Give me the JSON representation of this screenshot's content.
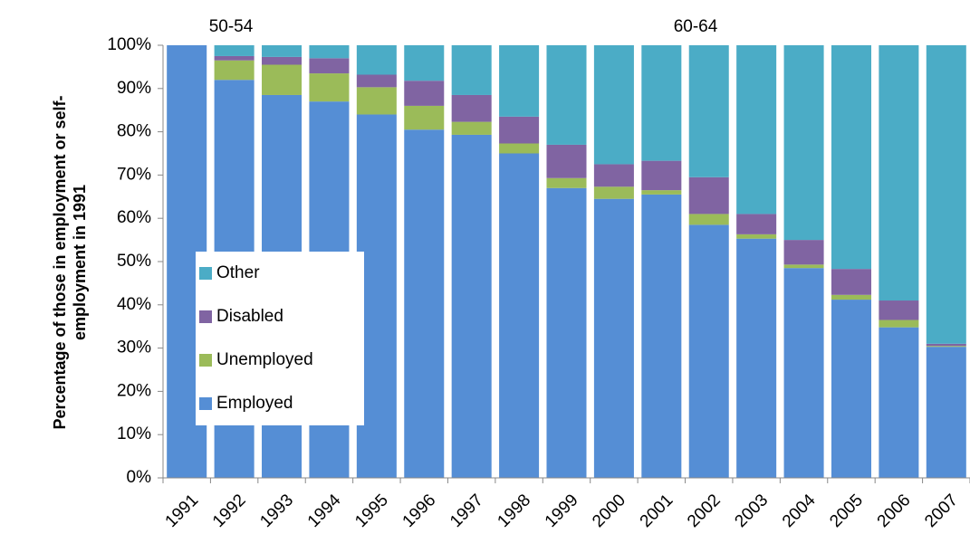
{
  "chart_data": {
    "type": "stacked_bar",
    "y_label": [
      "Percentage of those in employment or self-",
      "employment in 1991"
    ],
    "annotations": [
      "50-54",
      "60-64"
    ],
    "categories": [
      "1991",
      "1992",
      "1993",
      "1994",
      "1995",
      "1996",
      "1997",
      "1998",
      "1999",
      "2000",
      "2001",
      "2002",
      "2003",
      "2004",
      "2005",
      "2006",
      "2007"
    ],
    "series": [
      {
        "name": "Employed",
        "color": "#558ed5",
        "values": [
          100,
          92,
          88.5,
          87,
          84,
          80.5,
          79.3,
          75,
          67,
          64.5,
          65.5,
          58.5,
          55.3,
          48.5,
          41.2,
          34.8,
          30.3
        ]
      },
      {
        "name": "Unemployed",
        "color": "#9bbb59",
        "values": [
          0,
          4.5,
          7,
          6.5,
          6.3,
          5.5,
          3,
          2.3,
          2.3,
          2.8,
          1,
          2.5,
          1,
          0.8,
          1.1,
          1.7,
          0.2
        ]
      },
      {
        "name": "Disabled",
        "color": "#8064a2",
        "values": [
          0,
          1,
          1.8,
          3.5,
          2.9,
          5.8,
          6.2,
          6.2,
          7.7,
          5.2,
          6.8,
          8.5,
          4.7,
          5.7,
          6,
          4.5,
          0.5
        ]
      },
      {
        "name": "Other",
        "color": "#4bacc6",
        "values": [
          0,
          2.5,
          2.7,
          3,
          6.8,
          8.2,
          11.5,
          16.5,
          23,
          27.5,
          26.7,
          30.5,
          39,
          45,
          51.7,
          59,
          69
        ]
      }
    ],
    "ylim": [
      0,
      100
    ],
    "yticks": [
      {
        "value": 0,
        "label": "0%"
      },
      {
        "value": 10,
        "label": "10%"
      },
      {
        "value": 20,
        "label": "20%"
      },
      {
        "value": 30,
        "label": "30%"
      },
      {
        "value": 40,
        "label": "40%"
      },
      {
        "value": 50,
        "label": "50%"
      },
      {
        "value": 60,
        "label": "60%"
      },
      {
        "value": 70,
        "label": "70%"
      },
      {
        "value": 80,
        "label": "80%"
      },
      {
        "value": 90,
        "label": "90%"
      },
      {
        "value": 100,
        "label": "100%"
      }
    ],
    "legend": "inside-left"
  }
}
